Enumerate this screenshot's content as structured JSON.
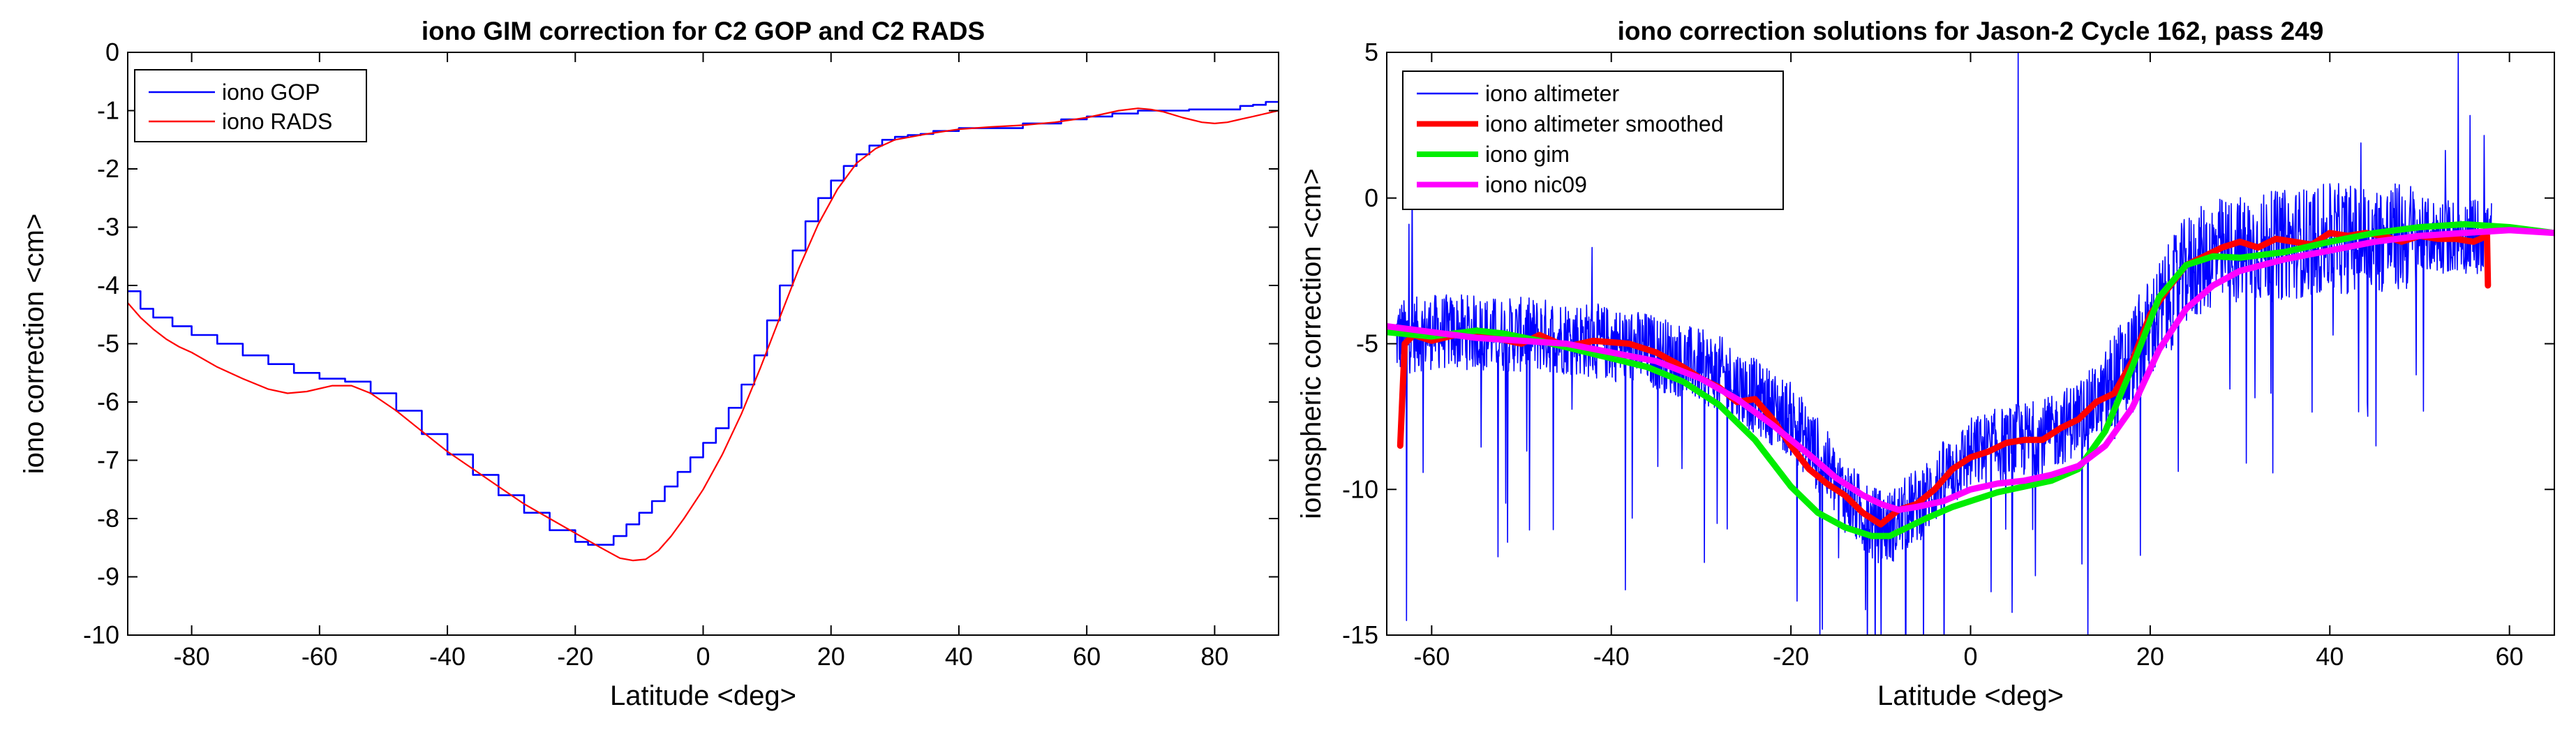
{
  "chart_data": [
    {
      "type": "line",
      "title": "iono GIM correction for C2 GOP and C2 RADS",
      "xlabel": "Latitude <deg>",
      "ylabel": "iono correction <cm>",
      "xlim": [
        -90,
        90
      ],
      "ylim": [
        -10,
        0
      ],
      "xticks": [
        -80,
        -60,
        -40,
        -20,
        0,
        20,
        40,
        60,
        80
      ],
      "yticks": [
        0,
        -1,
        -2,
        -3,
        -4,
        -5,
        -6,
        -7,
        -8,
        -9,
        -10
      ],
      "legend_position": "top-left",
      "series": [
        {
          "name": "iono GOP",
          "color": "#0000ff",
          "style": "step",
          "x": [
            -90,
            -88,
            -86,
            -83,
            -80,
            -76,
            -72,
            -68,
            -64,
            -60,
            -56,
            -52,
            -48,
            -44,
            -40,
            -36,
            -32,
            -28,
            -24,
            -20,
            -18,
            -16,
            -14,
            -12,
            -10,
            -8,
            -6,
            -4,
            -2,
            0,
            2,
            4,
            6,
            8,
            10,
            12,
            14,
            16,
            18,
            20,
            22,
            24,
            26,
            28,
            30,
            32,
            34,
            36,
            40,
            44,
            50,
            56,
            60,
            64,
            68,
            72,
            76,
            80,
            84,
            86,
            88
          ],
          "y": [
            -4.1,
            -4.4,
            -4.55,
            -4.7,
            -4.85,
            -5.0,
            -5.2,
            -5.35,
            -5.5,
            -5.6,
            -5.65,
            -5.85,
            -6.15,
            -6.55,
            -6.9,
            -7.25,
            -7.6,
            -7.9,
            -8.2,
            -8.4,
            -8.45,
            -8.45,
            -8.3,
            -8.1,
            -7.9,
            -7.7,
            -7.45,
            -7.2,
            -6.95,
            -6.7,
            -6.45,
            -6.1,
            -5.7,
            -5.2,
            -4.6,
            -4.0,
            -3.4,
            -2.9,
            -2.5,
            -2.2,
            -1.95,
            -1.75,
            -1.6,
            -1.5,
            -1.45,
            -1.42,
            -1.4,
            -1.35,
            -1.3,
            -1.3,
            -1.22,
            -1.15,
            -1.1,
            -1.05,
            -1.0,
            -1.0,
            -0.98,
            -0.98,
            -0.92,
            -0.9,
            -0.85
          ]
        },
        {
          "name": "iono RADS",
          "color": "#ff0000",
          "style": "line",
          "x": [
            -90,
            -88,
            -86,
            -84,
            -82,
            -80,
            -76,
            -72,
            -68,
            -65,
            -62,
            -58,
            -55,
            -52,
            -48,
            -44,
            -40,
            -36,
            -32,
            -28,
            -24,
            -20,
            -16,
            -13,
            -11,
            -9,
            -7,
            -5,
            -3,
            0,
            3,
            6,
            9,
            12,
            15,
            18,
            21,
            24,
            27,
            30,
            35,
            40,
            45,
            50,
            55,
            60,
            65,
            68,
            70,
            72,
            75,
            78,
            80,
            82,
            84,
            86,
            88,
            90
          ],
          "y": [
            -4.3,
            -4.55,
            -4.75,
            -4.92,
            -5.05,
            -5.15,
            -5.4,
            -5.6,
            -5.78,
            -5.85,
            -5.82,
            -5.72,
            -5.72,
            -5.85,
            -6.15,
            -6.5,
            -6.85,
            -7.15,
            -7.45,
            -7.75,
            -8.0,
            -8.25,
            -8.5,
            -8.68,
            -8.72,
            -8.7,
            -8.55,
            -8.3,
            -8.0,
            -7.5,
            -6.9,
            -6.2,
            -5.4,
            -4.55,
            -3.7,
            -2.95,
            -2.35,
            -1.9,
            -1.65,
            -1.5,
            -1.4,
            -1.32,
            -1.28,
            -1.25,
            -1.2,
            -1.12,
            -1.0,
            -0.96,
            -0.98,
            -1.02,
            -1.12,
            -1.2,
            -1.22,
            -1.2,
            -1.15,
            -1.1,
            -1.05,
            -1.0
          ]
        }
      ]
    },
    {
      "type": "line",
      "title": "iono correction solutions for Jason-2 Cycle 162, pass 249",
      "xlabel": "Latitude <deg>",
      "ylabel": "ionospheric correction <cm>",
      "xlim": [
        -65,
        65
      ],
      "ylim": [
        -15,
        5
      ],
      "xticks": [
        -60,
        -40,
        -20,
        0,
        20,
        40,
        60
      ],
      "yticks": [
        5,
        0,
        -5,
        -10,
        -15
      ],
      "legend_position": "top-left",
      "series": [
        {
          "name": "iono altimeter",
          "color": "#0000ff",
          "style": "noisy",
          "x": [
            -64,
            -60,
            -56,
            -52,
            -48,
            -44,
            -40,
            -36,
            -32,
            -28,
            -24,
            -20,
            -17,
            -14,
            -11,
            -9,
            -7,
            -5,
            -3,
            0,
            3,
            6,
            9,
            12,
            15,
            18,
            21,
            24,
            27,
            30,
            35,
            40,
            45,
            50,
            55,
            58
          ],
          "y": [
            -4.8,
            -4.6,
            -4.6,
            -4.7,
            -4.7,
            -4.8,
            -5.0,
            -5.2,
            -5.6,
            -6.0,
            -6.8,
            -7.6,
            -8.8,
            -10.2,
            -11.2,
            -11.3,
            -10.8,
            -10.3,
            -9.6,
            -8.8,
            -8.5,
            -8.3,
            -8.1,
            -7.5,
            -6.8,
            -5.6,
            -4.0,
            -2.5,
            -1.9,
            -1.8,
            -1.6,
            -1.4,
            -1.4,
            -1.3,
            -1.3,
            -1.3
          ]
        },
        {
          "name": "iono altimeter smoothed",
          "color": "#ff0000",
          "style": "line",
          "x": [
            -63.5,
            -63,
            -62,
            -60,
            -56,
            -53,
            -50,
            -48,
            -45,
            -42,
            -38,
            -35,
            -32,
            -30,
            -28,
            -26,
            -24,
            -22,
            -20,
            -18,
            -16,
            -14,
            -12,
            -10,
            -8,
            -6,
            -4,
            -2,
            0,
            2,
            4,
            6,
            8,
            10,
            12,
            14,
            16,
            18,
            20,
            22,
            24,
            26,
            28,
            30,
            32,
            34,
            36,
            38,
            40,
            42,
            44,
            46,
            48,
            50,
            52,
            54,
            56,
            57.5,
            57.6
          ],
          "y": [
            -8.5,
            -5.0,
            -4.7,
            -4.9,
            -4.6,
            -4.8,
            -5.0,
            -4.7,
            -5.1,
            -4.9,
            -5.0,
            -5.3,
            -5.8,
            -6.2,
            -6.5,
            -7.0,
            -6.9,
            -7.6,
            -8.5,
            -9.3,
            -9.8,
            -10.2,
            -10.8,
            -11.2,
            -10.7,
            -10.5,
            -10.0,
            -9.3,
            -8.9,
            -8.7,
            -8.4,
            -8.3,
            -8.3,
            -7.9,
            -7.6,
            -7.0,
            -6.7,
            -5.6,
            -4.0,
            -3.1,
            -2.3,
            -2.0,
            -1.7,
            -1.5,
            -1.7,
            -1.4,
            -1.5,
            -1.6,
            -1.2,
            -1.3,
            -1.2,
            -1.3,
            -1.5,
            -1.3,
            -1.4,
            -1.4,
            -1.5,
            -1.3,
            -3.0
          ]
        },
        {
          "name": "iono gim",
          "color": "#00ee00",
          "style": "line",
          "x": [
            -65,
            -60,
            -55,
            -52,
            -48,
            -44,
            -40,
            -36,
            -32,
            -28,
            -24,
            -20,
            -17,
            -14,
            -11,
            -9,
            -7,
            -5,
            -2,
            0,
            3,
            6,
            9,
            12,
            15,
            18,
            21,
            24,
            27,
            30,
            35,
            40,
            45,
            50,
            55,
            60,
            65
          ],
          "y": [
            -4.6,
            -4.75,
            -4.55,
            -4.65,
            -4.9,
            -5.2,
            -5.5,
            -5.8,
            -6.3,
            -7.1,
            -8.3,
            -9.9,
            -10.8,
            -11.3,
            -11.6,
            -11.6,
            -11.3,
            -11.0,
            -10.6,
            -10.4,
            -10.1,
            -9.9,
            -9.7,
            -9.3,
            -8.0,
            -5.8,
            -3.4,
            -2.3,
            -2.0,
            -2.05,
            -1.85,
            -1.5,
            -1.2,
            -1.0,
            -0.9,
            -1.0,
            -1.2
          ]
        },
        {
          "name": "iono nic09",
          "color": "#ff00ff",
          "style": "line",
          "x": [
            -65,
            -60,
            -55,
            -50,
            -45,
            -40,
            -35,
            -30,
            -26,
            -22,
            -18,
            -15,
            -12,
            -10,
            -8,
            -6,
            -3,
            0,
            3,
            6,
            9,
            12,
            15,
            18,
            21,
            24,
            27,
            30,
            35,
            40,
            45,
            50,
            55,
            60,
            65
          ],
          "y": [
            -4.4,
            -4.6,
            -4.8,
            -4.9,
            -5.0,
            -5.3,
            -5.6,
            -6.2,
            -6.9,
            -7.8,
            -8.8,
            -9.6,
            -10.2,
            -10.5,
            -10.7,
            -10.6,
            -10.4,
            -10.0,
            -9.8,
            -9.7,
            -9.5,
            -9.2,
            -8.5,
            -7.2,
            -5.2,
            -3.8,
            -3.0,
            -2.5,
            -2.1,
            -1.8,
            -1.5,
            -1.3,
            -1.2,
            -1.1,
            -1.2
          ]
        }
      ]
    }
  ]
}
